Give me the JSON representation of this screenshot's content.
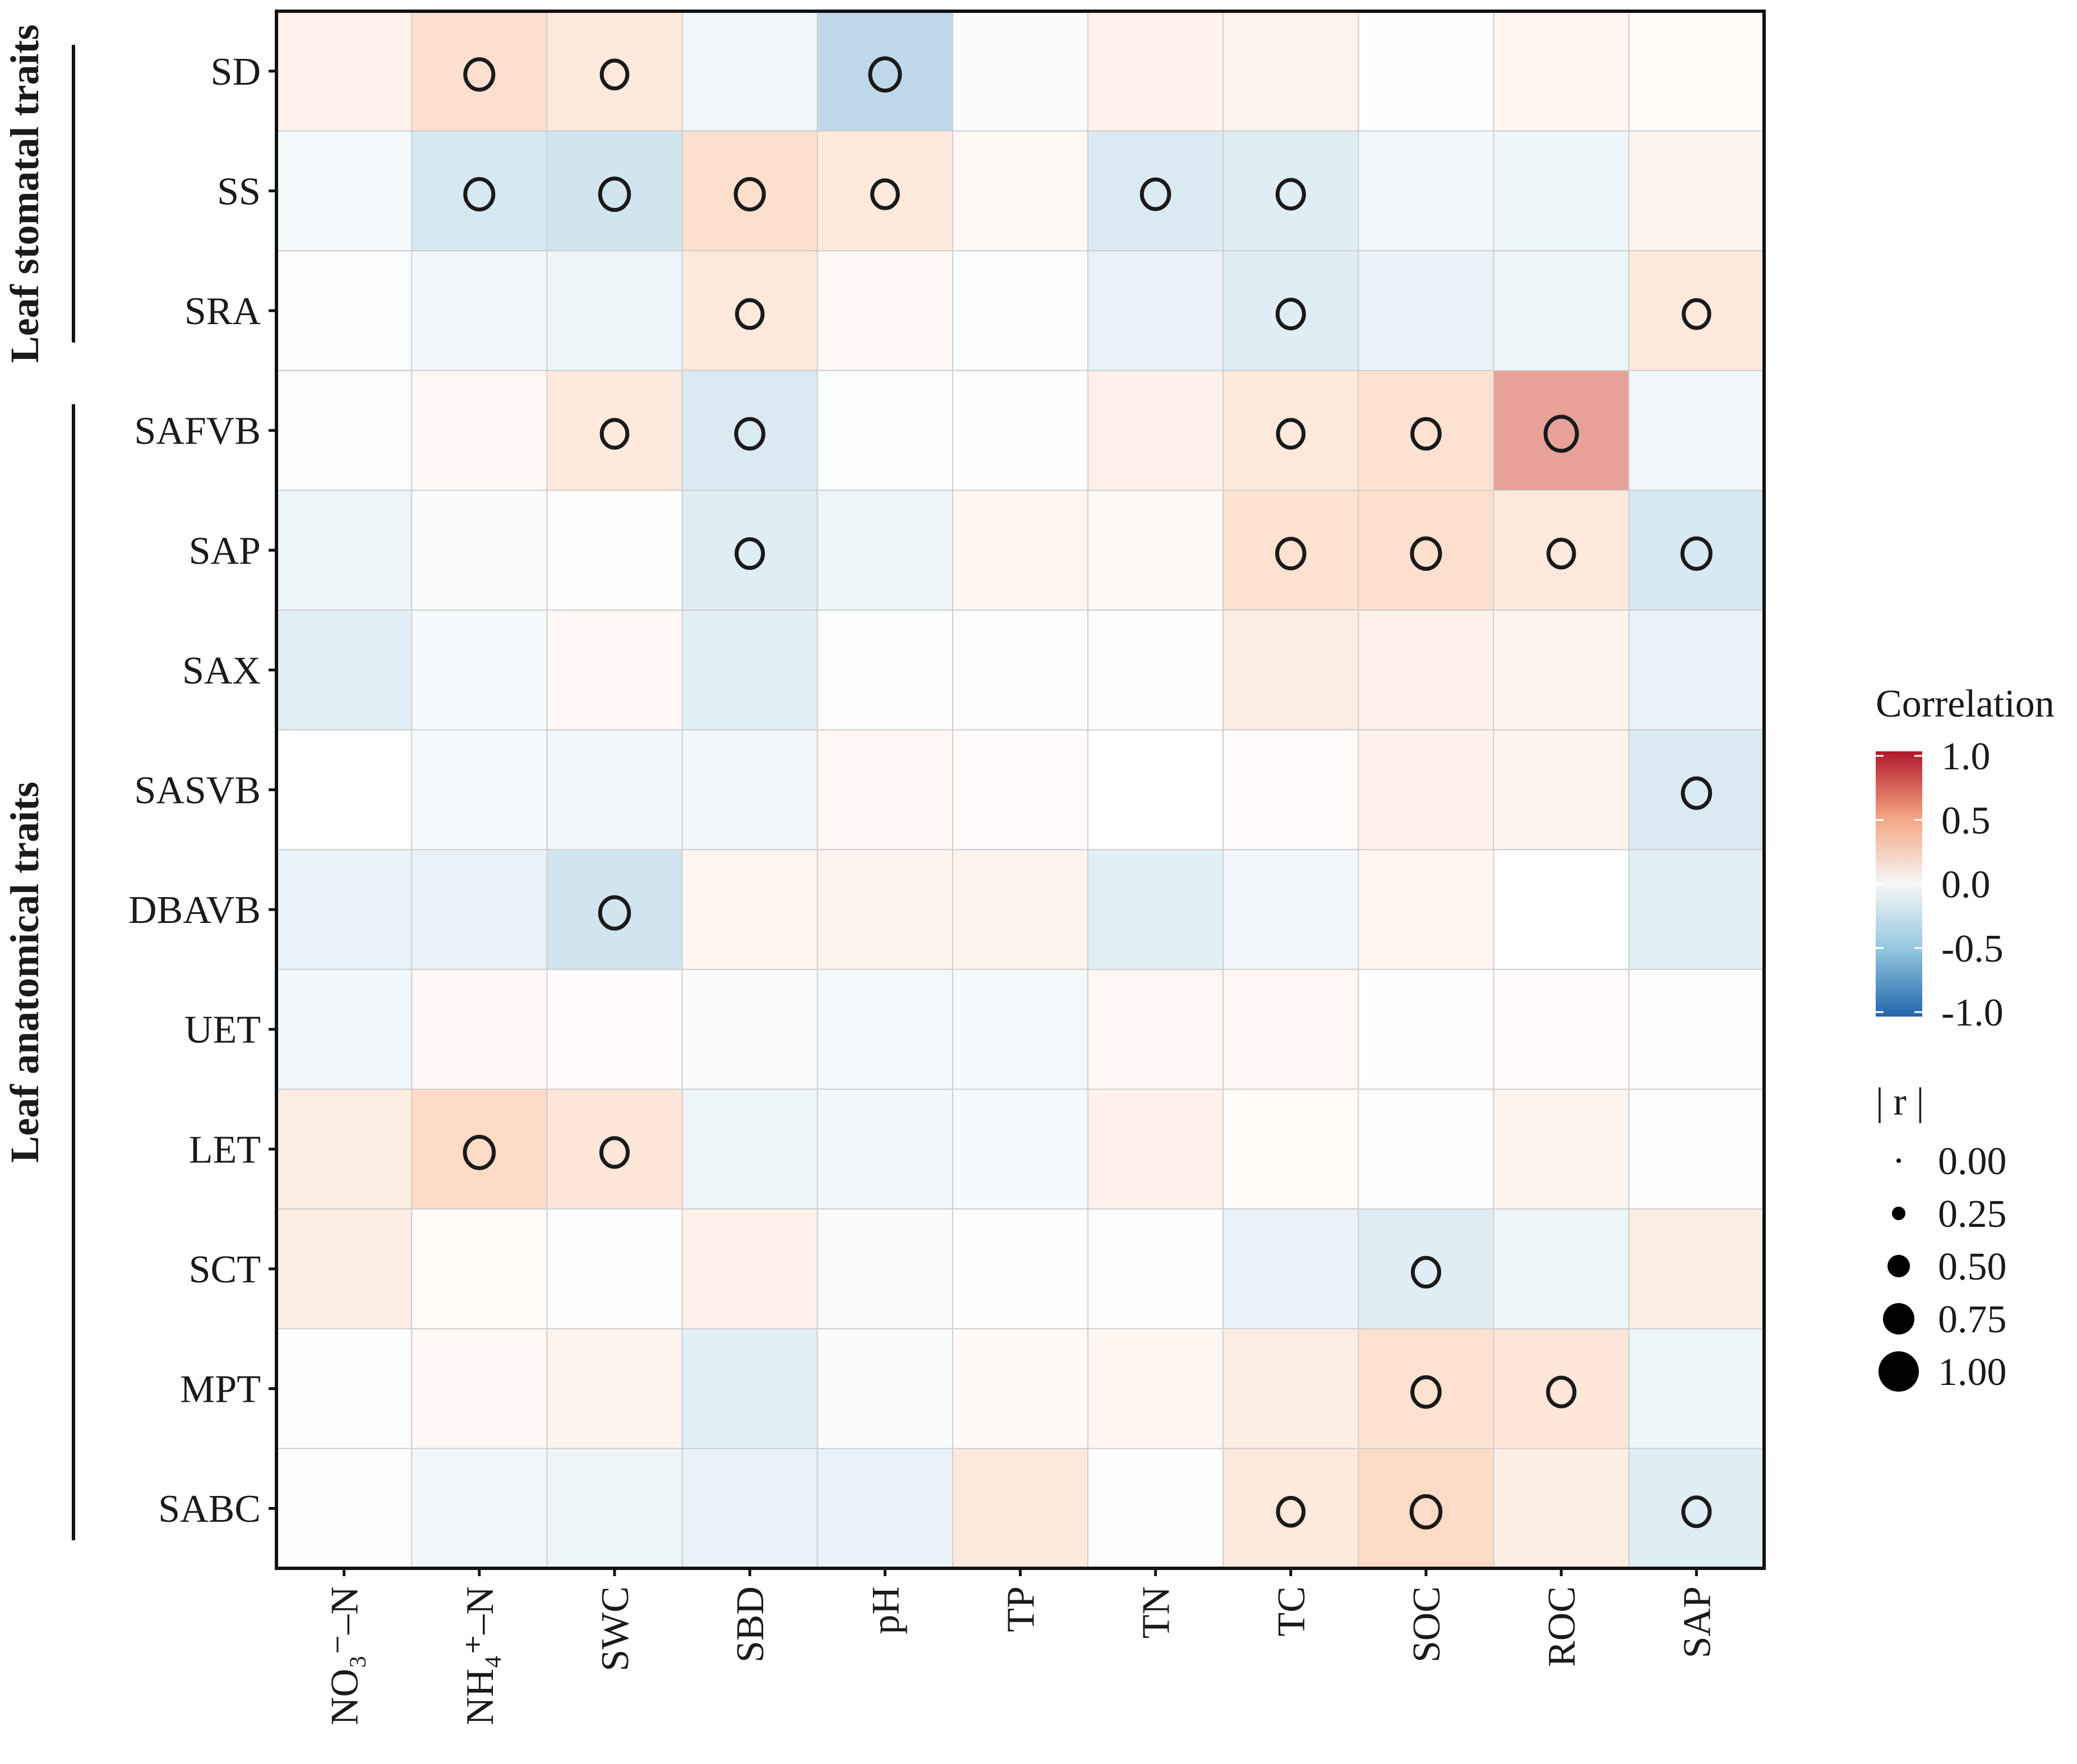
{
  "chart_data": {
    "type": "heatmap",
    "title": "",
    "x_categories": [
      "NO₃⁻–N",
      "NH₄⁺–N",
      "SWC",
      "SBD",
      "pH",
      "TP",
      "TN",
      "TC",
      "SOC",
      "ROC",
      "SAP"
    ],
    "y_categories": [
      "SD",
      "SS",
      "SRA",
      "SAFVB",
      "SAP",
      "SAX",
      "SASVB",
      "DBAVB",
      "UET",
      "LET",
      "SCT",
      "MPT",
      "SABC"
    ],
    "groups": [
      {
        "label": "Leaf stomatal traits",
        "rows": [
          "SD",
          "SS",
          "SRA"
        ]
      },
      {
        "label": "Leaf anatomical traits",
        "rows": [
          "SAFVB",
          "SAP",
          "SAX",
          "SASVB",
          "DBAVB",
          "UET",
          "LET",
          "SCT",
          "MPT",
          "SABC"
        ]
      }
    ],
    "values": [
      [
        0.18,
        0.45,
        0.3,
        -0.15,
        -0.55,
        -0.07,
        0.18,
        0.15,
        0.01,
        0.12,
        0.05
      ],
      [
        -0.12,
        -0.45,
        -0.5,
        0.45,
        0.3,
        0.08,
        -0.4,
        -0.35,
        -0.15,
        -0.2,
        0.15
      ],
      [
        -0.03,
        -0.15,
        -0.2,
        0.3,
        0.1,
        -0.05,
        -0.25,
        -0.35,
        -0.25,
        -0.2,
        0.3
      ],
      [
        -0.05,
        0.1,
        0.3,
        -0.4,
        -0.03,
        -0.03,
        0.2,
        0.3,
        0.4,
        0.65,
        -0.15
      ],
      [
        -0.2,
        -0.07,
        -0.01,
        -0.35,
        -0.2,
        0.12,
        0.07,
        0.4,
        0.45,
        0.3,
        -0.45
      ],
      [
        -0.3,
        -0.1,
        0.1,
        -0.3,
        -0.05,
        -0.05,
        -0.01,
        0.25,
        0.2,
        0.15,
        -0.25
      ],
      [
        0.0,
        -0.1,
        -0.15,
        -0.15,
        0.1,
        0.04,
        0.0,
        0.04,
        0.2,
        0.15,
        -0.4
      ],
      [
        -0.25,
        -0.25,
        -0.5,
        0.12,
        0.15,
        0.15,
        -0.3,
        -0.15,
        0.12,
        0.0,
        -0.3
      ],
      [
        -0.15,
        0.1,
        0.04,
        -0.07,
        -0.12,
        -0.12,
        0.1,
        0.1,
        0.02,
        0.04,
        -0.05
      ],
      [
        0.25,
        0.5,
        0.35,
        -0.2,
        -0.15,
        -0.1,
        0.2,
        0.05,
        0.03,
        0.15,
        -0.03
      ],
      [
        0.25,
        0.05,
        -0.05,
        0.2,
        -0.07,
        -0.02,
        0.01,
        -0.25,
        -0.35,
        -0.2,
        0.25
      ],
      [
        -0.02,
        0.1,
        0.15,
        -0.3,
        -0.07,
        0.07,
        0.12,
        0.25,
        0.4,
        0.35,
        -0.2
      ],
      [
        -0.01,
        -0.15,
        -0.2,
        -0.25,
        -0.25,
        0.3,
        0.03,
        0.3,
        0.5,
        0.25,
        -0.35
      ]
    ],
    "significant_markers": [
      {
        "row": "SD",
        "col": "NH₄⁺–N",
        "r": 0.45
      },
      {
        "row": "SD",
        "col": "SWC",
        "r": 0.3
      },
      {
        "row": "SD",
        "col": "pH",
        "r": -0.55
      },
      {
        "row": "SS",
        "col": "NH₄⁺–N",
        "r": -0.45
      },
      {
        "row": "SS",
        "col": "SWC",
        "r": -0.5
      },
      {
        "row": "SS",
        "col": "SBD",
        "r": 0.45
      },
      {
        "row": "SS",
        "col": "pH",
        "r": 0.3
      },
      {
        "row": "SS",
        "col": "TN",
        "r": -0.4
      },
      {
        "row": "SS",
        "col": "TC",
        "r": -0.35
      },
      {
        "row": "SRA",
        "col": "SBD",
        "r": 0.3
      },
      {
        "row": "SRA",
        "col": "TC",
        "r": -0.35
      },
      {
        "row": "SRA",
        "col": "SAP",
        "r": 0.3
      },
      {
        "row": "SAFVB",
        "col": "SWC",
        "r": 0.3
      },
      {
        "row": "SAFVB",
        "col": "SBD",
        "r": -0.4
      },
      {
        "row": "SAFVB",
        "col": "TC",
        "r": 0.3
      },
      {
        "row": "SAFVB",
        "col": "SOC",
        "r": 0.4
      },
      {
        "row": "SAFVB",
        "col": "ROC",
        "r": 0.65
      },
      {
        "row": "SAP",
        "col": "SBD",
        "r": -0.35
      },
      {
        "row": "SAP",
        "col": "TC",
        "r": 0.4
      },
      {
        "row": "SAP",
        "col": "SOC",
        "r": 0.45
      },
      {
        "row": "SAP",
        "col": "ROC",
        "r": 0.3
      },
      {
        "row": "SAP",
        "col": "SAP",
        "r": -0.45
      },
      {
        "row": "SASVB",
        "col": "SAP",
        "r": -0.4
      },
      {
        "row": "DBAVB",
        "col": "SWC",
        "r": -0.5
      },
      {
        "row": "LET",
        "col": "NH₄⁺–N",
        "r": 0.5
      },
      {
        "row": "LET",
        "col": "SWC",
        "r": 0.35
      },
      {
        "row": "SCT",
        "col": "SOC",
        "r": -0.35
      },
      {
        "row": "MPT",
        "col": "SOC",
        "r": 0.4
      },
      {
        "row": "MPT",
        "col": "ROC",
        "r": 0.35
      },
      {
        "row": "SABC",
        "col": "TC",
        "r": 0.3
      },
      {
        "row": "SABC",
        "col": "SOC",
        "r": 0.5
      },
      {
        "row": "SABC",
        "col": "SAP",
        "r": -0.35
      }
    ],
    "color_scale": {
      "low": "#2166ac",
      "mid": "#ffffff",
      "high": "#b2182b",
      "range": [
        -1.0,
        1.0
      ]
    },
    "legend": {
      "color_title": "Correlation",
      "color_ticks": [
        "1.0",
        "0.5",
        "0.0",
        "-0.5",
        "-1.0"
      ],
      "size_title": "| r |",
      "size_ticks": [
        "0.00",
        "0.25",
        "0.50",
        "0.75",
        "1.00"
      ],
      "position": "right"
    }
  }
}
